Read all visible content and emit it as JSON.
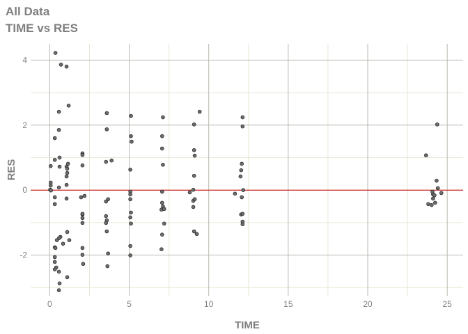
{
  "chart_data": {
    "type": "scatter",
    "title": "All Data",
    "subtitle": "TIME vs RES",
    "xlabel": "TIME",
    "ylabel": "RES",
    "xlim": [
      -1.2,
      26
    ],
    "ylim": [
      -3.25,
      4.5
    ],
    "xticks": [
      0,
      5,
      10,
      15,
      20,
      25
    ],
    "yticks": [
      -2,
      0,
      2,
      4
    ],
    "grid": true,
    "reference_line_y": 0,
    "colors": {
      "point_fill": "#6e6e6e",
      "point_edge": "#2a2a2a",
      "reference_line": "#cc0000",
      "major_grid": "#b8b8b0",
      "minor_grid": "#e8e8d8",
      "text": "#7f7f7f"
    },
    "points": [
      [
        0.36,
        4.22
      ],
      [
        0.71,
        3.86
      ],
      [
        1.06,
        3.8
      ],
      [
        1.19,
        2.6
      ],
      [
        0.58,
        2.41
      ],
      [
        3.59,
        2.37
      ],
      [
        0.58,
        1.85
      ],
      [
        3.59,
        1.87
      ],
      [
        0.32,
        1.6
      ],
      [
        2.06,
        1.13
      ],
      [
        2.06,
        1.08
      ],
      [
        0.32,
        0.93
      ],
      [
        0.62,
        1.0
      ],
      [
        3.54,
        0.87
      ],
      [
        3.89,
        0.91
      ],
      [
        0.06,
        0.74
      ],
      [
        0.62,
        0.72
      ],
      [
        1.15,
        0.81
      ],
      [
        1.06,
        0.72
      ],
      [
        1.1,
        0.66
      ],
      [
        2.06,
        0.76
      ],
      [
        1.1,
        0.53
      ],
      [
        1.06,
        0.42
      ],
      [
        0.06,
        0.23
      ],
      [
        0.06,
        0.14
      ],
      [
        1.06,
        0.16
      ],
      [
        0.58,
        0.08
      ],
      [
        0.06,
        0.0
      ],
      [
        0.03,
        0.01
      ],
      [
        0.08,
        -0.01
      ],
      [
        0.32,
        -0.22
      ],
      [
        0.32,
        -0.43
      ],
      [
        1.06,
        -0.26
      ],
      [
        1.97,
        -0.22
      ],
      [
        2.19,
        -0.18
      ],
      [
        3.54,
        -0.35
      ],
      [
        3.67,
        -0.28
      ],
      [
        2.06,
        -0.75
      ],
      [
        2.06,
        -0.73
      ],
      [
        2.06,
        -0.86
      ],
      [
        2.06,
        -1.01
      ],
      [
        3.54,
        -0.8
      ],
      [
        3.59,
        -0.93
      ],
      [
        3.54,
        -1.01
      ],
      [
        3.59,
        -1.27
      ],
      [
        1.1,
        -1.29
      ],
      [
        0.67,
        -1.44
      ],
      [
        0.58,
        -1.48
      ],
      [
        0.45,
        -1.54
      ],
      [
        1.23,
        -1.54
      ],
      [
        0.84,
        -1.65
      ],
      [
        0.32,
        -1.76
      ],
      [
        0.36,
        -1.78
      ],
      [
        2.06,
        -1.78
      ],
      [
        2.06,
        -1.99
      ],
      [
        3.67,
        -1.95
      ],
      [
        0.32,
        -2.06
      ],
      [
        0.32,
        -2.21
      ],
      [
        2.1,
        -2.27
      ],
      [
        3.63,
        -2.34
      ],
      [
        0.41,
        -2.38
      ],
      [
        0.32,
        -2.44
      ],
      [
        0.58,
        -2.51
      ],
      [
        1.1,
        -2.68
      ],
      [
        0.62,
        -2.87
      ],
      [
        0.58,
        -3.08
      ],
      [
        5.11,
        2.28
      ],
      [
        7.12,
        2.24
      ],
      [
        9.43,
        2.41
      ],
      [
        9.08,
        2.02
      ],
      [
        12.13,
        2.24
      ],
      [
        12.13,
        1.96
      ],
      [
        5.11,
        1.66
      ],
      [
        5.15,
        1.49
      ],
      [
        7.07,
        1.66
      ],
      [
        7.07,
        1.28
      ],
      [
        9.08,
        1.23
      ],
      [
        9.12,
        1.06
      ],
      [
        7.12,
        0.78
      ],
      [
        12.08,
        0.81
      ],
      [
        12.04,
        0.61
      ],
      [
        12.0,
        0.42
      ],
      [
        5.07,
        0.63
      ],
      [
        9.08,
        0.44
      ],
      [
        9.03,
        0.01
      ],
      [
        8.81,
        -0.07
      ],
      [
        12.17,
        0.0
      ],
      [
        11.65,
        -0.11
      ],
      [
        12.08,
        -0.22
      ],
      [
        5.07,
        -0.05
      ],
      [
        5.07,
        -0.13
      ],
      [
        5.07,
        -0.28
      ],
      [
        7.07,
        -0.05
      ],
      [
        7.07,
        -0.39
      ],
      [
        7.12,
        -0.5
      ],
      [
        7.03,
        -0.6
      ],
      [
        7.2,
        -0.58
      ],
      [
        9.03,
        -0.33
      ],
      [
        9.12,
        -0.28
      ],
      [
        9.03,
        -0.52
      ],
      [
        5.11,
        -0.69
      ],
      [
        5.07,
        -0.84
      ],
      [
        5.11,
        -1.03
      ],
      [
        7.2,
        -1.03
      ],
      [
        7.07,
        -1.37
      ],
      [
        7.03,
        -1.82
      ],
      [
        9.08,
        -1.27
      ],
      [
        9.25,
        -1.35
      ],
      [
        12.04,
        -0.75
      ],
      [
        12.13,
        -0.73
      ],
      [
        12.13,
        -0.97
      ],
      [
        12.13,
        -1.05
      ],
      [
        5.07,
        -1.72
      ],
      [
        5.07,
        -2.01
      ],
      [
        24.37,
        2.02
      ],
      [
        23.67,
        1.07
      ],
      [
        24.33,
        0.29
      ],
      [
        24.41,
        0.06
      ],
      [
        24.63,
        -0.09
      ],
      [
        24.07,
        -0.05
      ],
      [
        24.11,
        -0.13
      ],
      [
        24.2,
        -0.16
      ],
      [
        24.11,
        -0.26
      ],
      [
        24.24,
        -0.39
      ],
      [
        23.81,
        -0.43
      ],
      [
        24.02,
        -0.46
      ]
    ]
  }
}
